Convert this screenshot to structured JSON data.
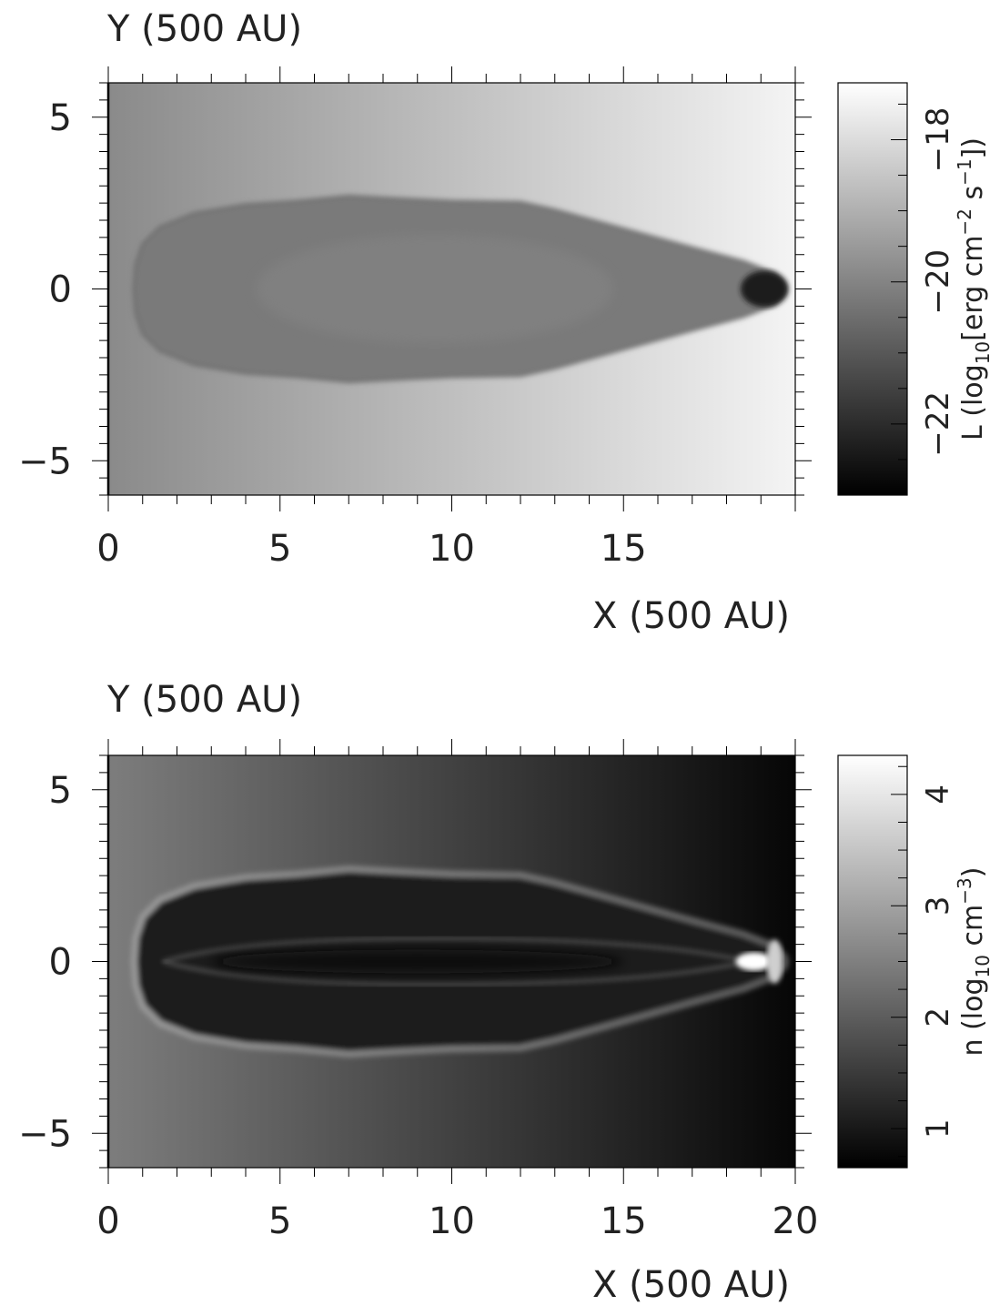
{
  "chart_data": [
    {
      "type": "heatmap",
      "panel": "top",
      "xlabel": "X (500 AU)",
      "ylabel": "Y (500 AU)",
      "xlim": [
        0,
        20
      ],
      "ylim": [
        -6,
        6
      ],
      "xticks": [
        0,
        5,
        10,
        15
      ],
      "yticks": [
        -5,
        0,
        5
      ],
      "xtick_labels": [
        "0",
        "5",
        "10",
        "15"
      ],
      "ytick_labels": [
        "−5",
        "0",
        "5"
      ],
      "colorbar": {
        "label_main": "L (log",
        "label_sub": "10",
        "label_rest": "[erg cm",
        "sup1": "−2",
        "label_mid": " s",
        "sup2": "−1",
        "label_end": "])",
        "range": [
          -23,
          -17.2
        ],
        "ticks": [
          -22,
          -20,
          -18
        ],
        "tick_labels": [
          "−22",
          "−20",
          "−18"
        ],
        "colormap": "gray",
        "low_color": "#000000",
        "high_color": "#ffffff"
      },
      "field": {
        "background_left": "#8a8a8a",
        "background_right": "#f4f4f4",
        "cocoon_fill": "#7a7a7a",
        "cocoon_core": "#848484",
        "tip_color": "#1a1a1a",
        "cocoon_halfwidth_max": 2.7,
        "cocoon_extent": [
          0.8,
          19.7
        ]
      }
    },
    {
      "type": "heatmap",
      "panel": "bottom",
      "xlabel": "X (500 AU)",
      "ylabel": "Y (500 AU)",
      "xlim": [
        0,
        20
      ],
      "ylim": [
        -6,
        6
      ],
      "xticks": [
        0,
        5,
        10,
        15,
        20
      ],
      "yticks": [
        -5,
        0,
        5
      ],
      "xtick_labels": [
        "0",
        "5",
        "10",
        "15",
        "20"
      ],
      "ytick_labels": [
        "−5",
        "0",
        "5"
      ],
      "colorbar": {
        "label_main": "n (log",
        "label_sub": "10",
        "label_rest": " cm",
        "sup1": "−3",
        "label_end": ")",
        "range": [
          0.65,
          4.35
        ],
        "ticks": [
          1,
          2,
          3,
          4
        ],
        "tick_labels": [
          "1",
          "2",
          "3",
          "4"
        ],
        "colormap": "gray",
        "low_color": "#000000",
        "high_color": "#ffffff"
      },
      "field": {
        "background_left": "#7d7d7d",
        "background_right": "#060606",
        "cocoon_fill": "#1c1c1c",
        "cocoon_shell": "#8c8c8c",
        "jet_axis": "#0a0a0a",
        "tip_color": "#ffffff",
        "cocoon_halfwidth_max": 2.7,
        "cocoon_extent": [
          0.8,
          19.7
        ]
      }
    }
  ]
}
